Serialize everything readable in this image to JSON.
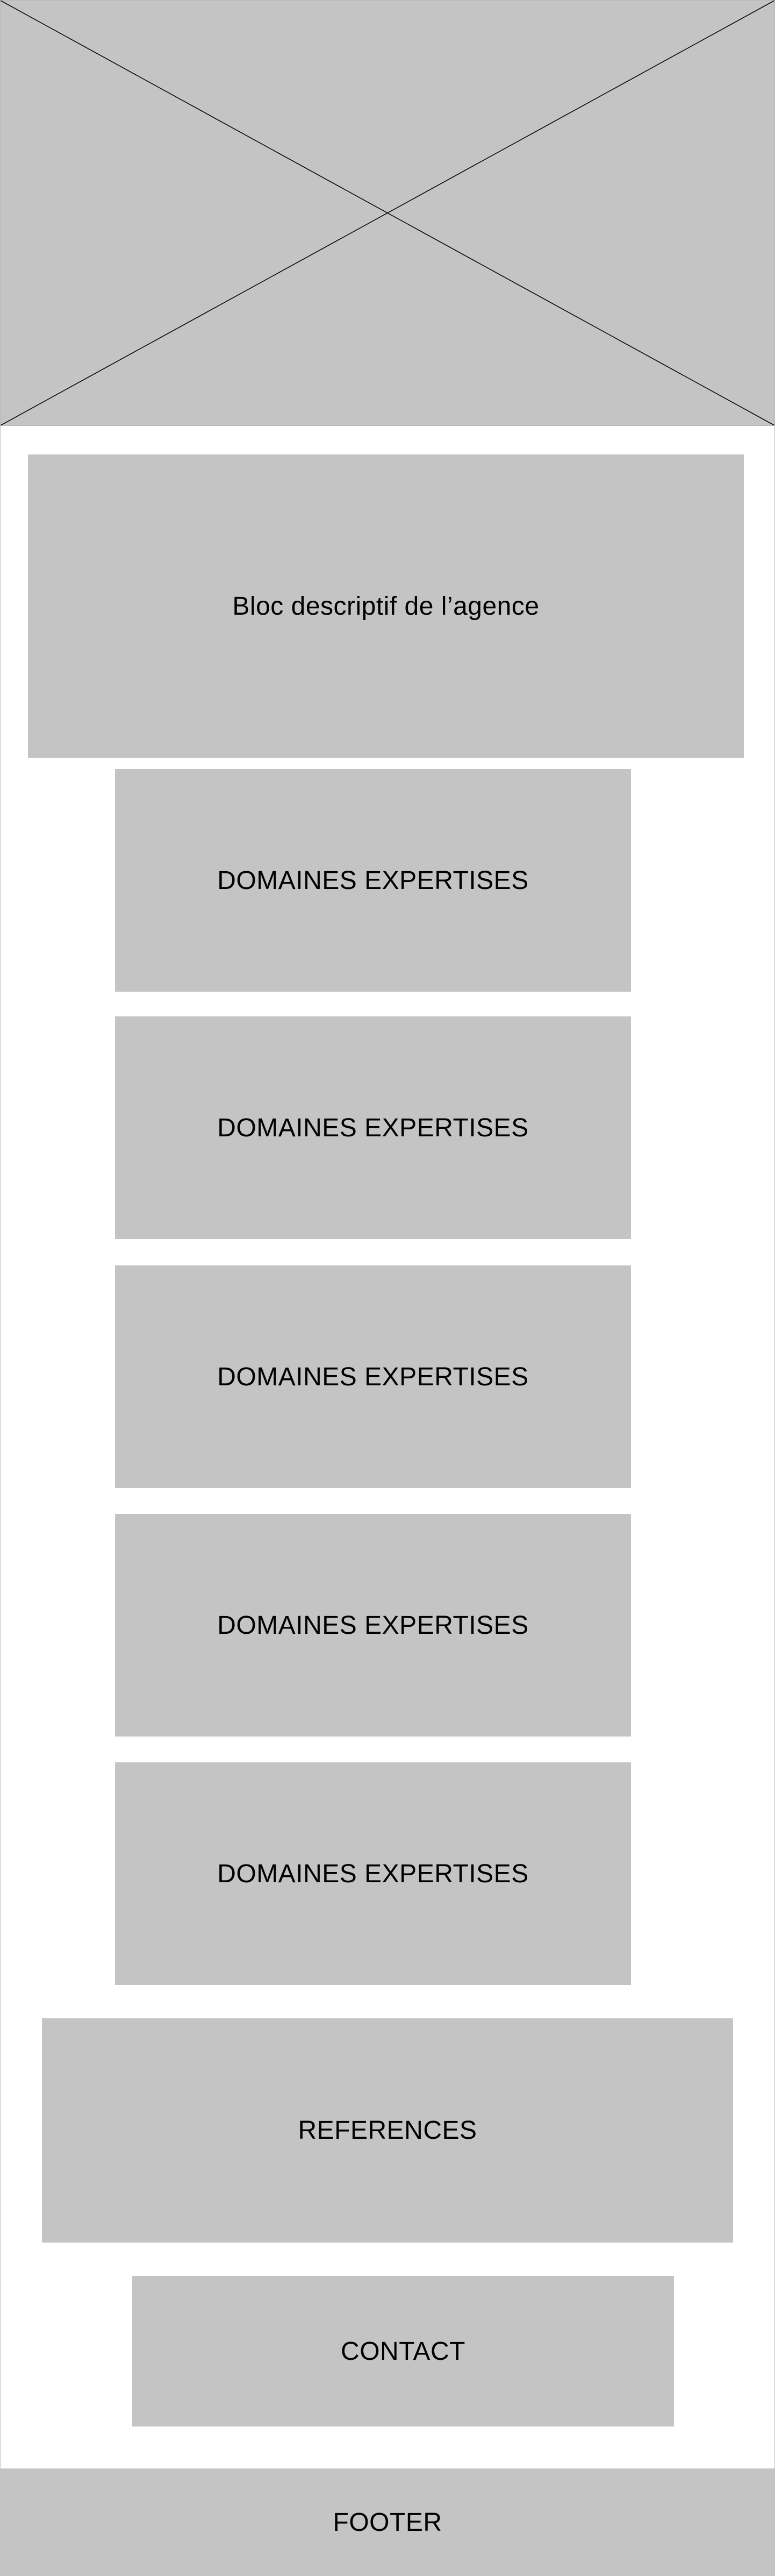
{
  "hero": {
    "kind": "image-placeholder",
    "fill": "#c4c4c4",
    "line_color": "#000000"
  },
  "description_block": {
    "label": "Bloc descriptif de l’agence"
  },
  "expertise_blocks": [
    {
      "label": "DOMAINES EXPERTISES"
    },
    {
      "label": "DOMAINES EXPERTISES"
    },
    {
      "label": "DOMAINES EXPERTISES"
    },
    {
      "label": "DOMAINES EXPERTISES"
    },
    {
      "label": "DOMAINES EXPERTISES"
    }
  ],
  "references_block": {
    "label": "REFERENCES"
  },
  "contact_block": {
    "label": "CONTACT"
  },
  "footer": {
    "label": "FOOTER"
  },
  "colors": {
    "placeholder_fill": "#c4c4c4",
    "page_background": "#ffffff",
    "text": "#000000"
  }
}
